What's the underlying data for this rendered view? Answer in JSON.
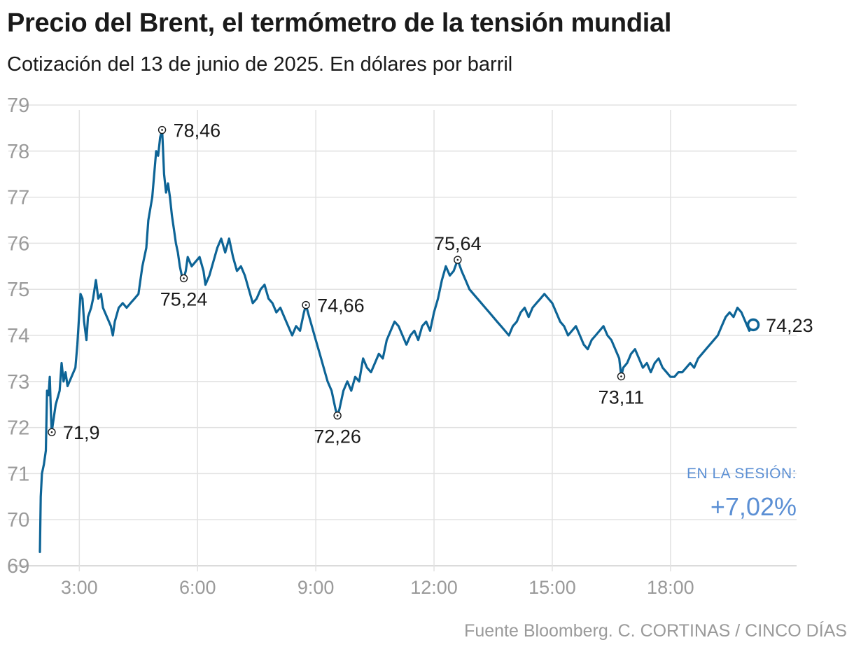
{
  "header": {
    "title": "Precio del Brent, el termómetro de la tensión mundial",
    "subtitle": "Cotización del 13 de junio de 2025. En dólares por barril"
  },
  "chart_data": {
    "type": "line",
    "title": "Precio del Brent, el termómetro de la tensión mundial",
    "subtitle": "Cotización del 13 de junio de 2025. En dólares por barril",
    "xlabel": "",
    "ylabel": "",
    "x_unit": "hours",
    "xlim": [
      1.2,
      21.2
    ],
    "ylim": [
      69,
      79
    ],
    "x_ticks": [
      3,
      6,
      9,
      12,
      15,
      18
    ],
    "x_tick_labels": [
      "3:00",
      "6:00",
      "9:00",
      "12:00",
      "15:00",
      "18:00"
    ],
    "y_ticks": [
      69,
      70,
      71,
      72,
      73,
      74,
      75,
      76,
      77,
      78,
      79
    ],
    "y_tick_labels": [
      "69",
      "70",
      "71",
      "72",
      "73",
      "74",
      "75",
      "76",
      "77",
      "78",
      "79"
    ],
    "grid": true,
    "line_color": "#0d6496",
    "series": [
      {
        "values": [
          [
            2.0,
            69.3
          ],
          [
            2.02,
            70.5
          ],
          [
            2.05,
            71.0
          ],
          [
            2.1,
            71.2
          ],
          [
            2.15,
            71.5
          ],
          [
            2.18,
            72.8
          ],
          [
            2.22,
            72.7
          ],
          [
            2.25,
            73.1
          ],
          [
            2.28,
            72.3
          ],
          [
            2.3,
            71.9
          ],
          [
            2.35,
            72.2
          ],
          [
            2.4,
            72.5
          ],
          [
            2.5,
            72.8
          ],
          [
            2.55,
            73.4
          ],
          [
            2.6,
            73.0
          ],
          [
            2.65,
            73.2
          ],
          [
            2.7,
            72.9
          ],
          [
            2.8,
            73.1
          ],
          [
            2.9,
            73.3
          ],
          [
            2.95,
            73.8
          ],
          [
            3.0,
            74.5
          ],
          [
            3.03,
            74.9
          ],
          [
            3.08,
            74.8
          ],
          [
            3.12,
            74.3
          ],
          [
            3.18,
            73.9
          ],
          [
            3.22,
            74.4
          ],
          [
            3.3,
            74.6
          ],
          [
            3.35,
            74.8
          ],
          [
            3.42,
            75.2
          ],
          [
            3.48,
            74.8
          ],
          [
            3.55,
            74.9
          ],
          [
            3.6,
            74.6
          ],
          [
            3.7,
            74.4
          ],
          [
            3.8,
            74.2
          ],
          [
            3.85,
            74.0
          ],
          [
            3.9,
            74.3
          ],
          [
            4.0,
            74.6
          ],
          [
            4.1,
            74.7
          ],
          [
            4.2,
            74.6
          ],
          [
            4.3,
            74.7
          ],
          [
            4.4,
            74.8
          ],
          [
            4.5,
            74.9
          ],
          [
            4.55,
            75.2
          ],
          [
            4.6,
            75.5
          ],
          [
            4.7,
            75.9
          ],
          [
            4.75,
            76.5
          ],
          [
            4.85,
            77.0
          ],
          [
            4.9,
            77.5
          ],
          [
            4.95,
            78.0
          ],
          [
            5.0,
            77.9
          ],
          [
            5.05,
            78.3
          ],
          [
            5.1,
            78.46
          ],
          [
            5.12,
            78.1
          ],
          [
            5.15,
            77.5
          ],
          [
            5.2,
            77.1
          ],
          [
            5.25,
            77.3
          ],
          [
            5.3,
            77.0
          ],
          [
            5.35,
            76.6
          ],
          [
            5.4,
            76.3
          ],
          [
            5.45,
            76.0
          ],
          [
            5.5,
            75.8
          ],
          [
            5.55,
            75.5
          ],
          [
            5.6,
            75.3
          ],
          [
            5.65,
            75.24
          ],
          [
            5.7,
            75.4
          ],
          [
            5.75,
            75.7
          ],
          [
            5.85,
            75.5
          ],
          [
            5.95,
            75.6
          ],
          [
            6.05,
            75.7
          ],
          [
            6.15,
            75.4
          ],
          [
            6.2,
            75.1
          ],
          [
            6.3,
            75.3
          ],
          [
            6.4,
            75.6
          ],
          [
            6.5,
            75.9
          ],
          [
            6.6,
            76.1
          ],
          [
            6.7,
            75.8
          ],
          [
            6.8,
            76.1
          ],
          [
            6.9,
            75.7
          ],
          [
            7.0,
            75.4
          ],
          [
            7.1,
            75.5
          ],
          [
            7.2,
            75.3
          ],
          [
            7.3,
            75.0
          ],
          [
            7.4,
            74.7
          ],
          [
            7.5,
            74.8
          ],
          [
            7.6,
            75.0
          ],
          [
            7.7,
            75.1
          ],
          [
            7.8,
            74.8
          ],
          [
            7.9,
            74.7
          ],
          [
            8.0,
            74.5
          ],
          [
            8.1,
            74.6
          ],
          [
            8.2,
            74.4
          ],
          [
            8.3,
            74.2
          ],
          [
            8.4,
            74.0
          ],
          [
            8.5,
            74.2
          ],
          [
            8.6,
            74.1
          ],
          [
            8.7,
            74.5
          ],
          [
            8.75,
            74.66
          ],
          [
            8.8,
            74.5
          ],
          [
            8.9,
            74.2
          ],
          [
            9.0,
            73.9
          ],
          [
            9.1,
            73.6
          ],
          [
            9.2,
            73.3
          ],
          [
            9.3,
            73.0
          ],
          [
            9.4,
            72.8
          ],
          [
            9.5,
            72.4
          ],
          [
            9.55,
            72.26
          ],
          [
            9.6,
            72.4
          ],
          [
            9.7,
            72.8
          ],
          [
            9.8,
            73.0
          ],
          [
            9.9,
            72.8
          ],
          [
            10.0,
            73.1
          ],
          [
            10.1,
            73.0
          ],
          [
            10.2,
            73.5
          ],
          [
            10.3,
            73.3
          ],
          [
            10.4,
            73.2
          ],
          [
            10.5,
            73.4
          ],
          [
            10.6,
            73.6
          ],
          [
            10.7,
            73.5
          ],
          [
            10.8,
            73.9
          ],
          [
            10.9,
            74.1
          ],
          [
            11.0,
            74.3
          ],
          [
            11.1,
            74.2
          ],
          [
            11.2,
            74.0
          ],
          [
            11.3,
            73.8
          ],
          [
            11.4,
            74.0
          ],
          [
            11.5,
            74.1
          ],
          [
            11.6,
            73.9
          ],
          [
            11.7,
            74.2
          ],
          [
            11.8,
            74.3
          ],
          [
            11.9,
            74.1
          ],
          [
            12.0,
            74.5
          ],
          [
            12.1,
            74.8
          ],
          [
            12.2,
            75.2
          ],
          [
            12.3,
            75.5
          ],
          [
            12.4,
            75.3
          ],
          [
            12.5,
            75.4
          ],
          [
            12.6,
            75.64
          ],
          [
            12.7,
            75.4
          ],
          [
            12.8,
            75.2
          ],
          [
            12.9,
            75.0
          ],
          [
            13.0,
            74.9
          ],
          [
            13.1,
            74.8
          ],
          [
            13.2,
            74.7
          ],
          [
            13.3,
            74.6
          ],
          [
            13.4,
            74.5
          ],
          [
            13.5,
            74.4
          ],
          [
            13.6,
            74.3
          ],
          [
            13.7,
            74.2
          ],
          [
            13.8,
            74.1
          ],
          [
            13.9,
            74.0
          ],
          [
            14.0,
            74.2
          ],
          [
            14.1,
            74.3
          ],
          [
            14.2,
            74.5
          ],
          [
            14.3,
            74.6
          ],
          [
            14.4,
            74.4
          ],
          [
            14.5,
            74.6
          ],
          [
            14.6,
            74.7
          ],
          [
            14.7,
            74.8
          ],
          [
            14.8,
            74.9
          ],
          [
            14.9,
            74.8
          ],
          [
            15.0,
            74.7
          ],
          [
            15.1,
            74.5
          ],
          [
            15.2,
            74.3
          ],
          [
            15.3,
            74.2
          ],
          [
            15.4,
            74.0
          ],
          [
            15.5,
            74.1
          ],
          [
            15.6,
            74.2
          ],
          [
            15.7,
            74.0
          ],
          [
            15.8,
            73.8
          ],
          [
            15.9,
            73.7
          ],
          [
            16.0,
            73.9
          ],
          [
            16.1,
            74.0
          ],
          [
            16.2,
            74.1
          ],
          [
            16.3,
            74.2
          ],
          [
            16.4,
            74.0
          ],
          [
            16.5,
            73.9
          ],
          [
            16.6,
            73.7
          ],
          [
            16.7,
            73.5
          ],
          [
            16.75,
            73.11
          ],
          [
            16.8,
            73.3
          ],
          [
            16.9,
            73.4
          ],
          [
            17.0,
            73.6
          ],
          [
            17.1,
            73.7
          ],
          [
            17.2,
            73.5
          ],
          [
            17.3,
            73.3
          ],
          [
            17.4,
            73.4
          ],
          [
            17.5,
            73.2
          ],
          [
            17.6,
            73.4
          ],
          [
            17.7,
            73.5
          ],
          [
            17.8,
            73.3
          ],
          [
            17.9,
            73.2
          ],
          [
            18.0,
            73.1
          ],
          [
            18.1,
            73.1
          ],
          [
            18.2,
            73.2
          ],
          [
            18.3,
            73.2
          ],
          [
            18.4,
            73.3
          ],
          [
            18.5,
            73.4
          ],
          [
            18.6,
            73.3
          ],
          [
            18.7,
            73.5
          ],
          [
            18.8,
            73.6
          ],
          [
            18.9,
            73.7
          ],
          [
            19.0,
            73.8
          ],
          [
            19.1,
            73.9
          ],
          [
            19.2,
            74.0
          ],
          [
            19.3,
            74.2
          ],
          [
            19.4,
            74.4
          ],
          [
            19.5,
            74.5
          ],
          [
            19.6,
            74.4
          ],
          [
            19.7,
            74.6
          ],
          [
            19.8,
            74.5
          ],
          [
            19.9,
            74.3
          ],
          [
            20.0,
            74.1
          ],
          [
            20.1,
            74.23
          ]
        ]
      }
    ],
    "annotations": [
      {
        "x": 2.3,
        "y": 71.9,
        "label": "71,9",
        "pos": "right"
      },
      {
        "x": 5.1,
        "y": 78.46,
        "label": "78,46",
        "pos": "right"
      },
      {
        "x": 5.65,
        "y": 75.24,
        "label": "75,24",
        "pos": "below"
      },
      {
        "x": 8.75,
        "y": 74.66,
        "label": "74,66",
        "pos": "right"
      },
      {
        "x": 9.55,
        "y": 72.26,
        "label": "72,26",
        "pos": "below"
      },
      {
        "x": 12.6,
        "y": 75.64,
        "label": "75,64",
        "pos": "above"
      },
      {
        "x": 16.75,
        "y": 73.11,
        "label": "73,11",
        "pos": "below"
      },
      {
        "x": 20.1,
        "y": 74.23,
        "label": "74,23",
        "pos": "right",
        "final": true
      }
    ],
    "session": {
      "label": "EN LA SESIÓN:",
      "value": "+7,02%"
    }
  },
  "footer": {
    "source": "Fuente Bloomberg. C. CORTINAS / CINCO DÍAS"
  }
}
